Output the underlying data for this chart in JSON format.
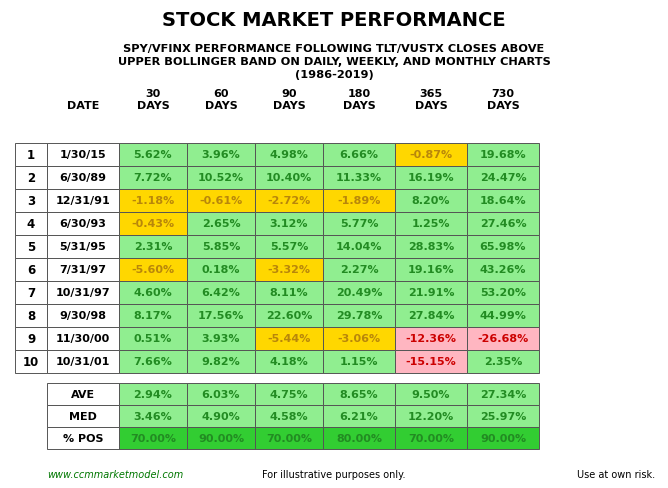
{
  "title": "STOCK MARKET PERFORMANCE",
  "subtitle_lines": [
    "SPY/VFINX PERFORMANCE FOLLOWING TLT/VUSTX CLOSES ABOVE",
    "UPPER BOLLINGER BAND ON DAILY, WEEKLY, AND MONTHLY CHARTS",
    "(1986-2019)"
  ],
  "col_headers_top": [
    "30",
    "60",
    "90",
    "180",
    "365",
    "730"
  ],
  "col_headers_bot": [
    "DAYS",
    "DAYS",
    "DAYS",
    "DAYS",
    "DAYS",
    "DAYS"
  ],
  "rows": [
    [
      1,
      "1/30/15",
      5.62,
      3.96,
      4.98,
      6.66,
      -0.87,
      19.68
    ],
    [
      2,
      "6/30/89",
      7.72,
      10.52,
      10.4,
      11.33,
      16.19,
      24.47
    ],
    [
      3,
      "12/31/91",
      -1.18,
      -0.61,
      -2.72,
      -1.89,
      8.2,
      18.64
    ],
    [
      4,
      "6/30/93",
      -0.43,
      2.65,
      3.12,
      5.77,
      1.25,
      27.46
    ],
    [
      5,
      "5/31/95",
      2.31,
      5.85,
      5.57,
      14.04,
      28.83,
      65.98
    ],
    [
      6,
      "7/31/97",
      -5.6,
      0.18,
      -3.32,
      2.27,
      19.16,
      43.26
    ],
    [
      7,
      "10/31/97",
      4.6,
      6.42,
      8.11,
      20.49,
      21.91,
      53.2
    ],
    [
      8,
      "9/30/98",
      8.17,
      17.56,
      22.6,
      29.78,
      27.84,
      44.99
    ],
    [
      9,
      "11/30/00",
      0.51,
      3.93,
      -5.44,
      -3.06,
      -12.36,
      -26.68
    ],
    [
      10,
      "10/31/01",
      7.66,
      9.82,
      4.18,
      1.15,
      -15.15,
      2.35
    ]
  ],
  "cell_colors": [
    [
      "green",
      "green",
      "green",
      "green",
      "yellow",
      "green"
    ],
    [
      "green",
      "green",
      "green",
      "green",
      "green",
      "green"
    ],
    [
      "yellow",
      "yellow",
      "yellow",
      "yellow",
      "green",
      "green"
    ],
    [
      "yellow",
      "green",
      "green",
      "green",
      "green",
      "green"
    ],
    [
      "green",
      "green",
      "green",
      "green",
      "green",
      "green"
    ],
    [
      "yellow",
      "green",
      "yellow",
      "green",
      "green",
      "green"
    ],
    [
      "green",
      "green",
      "green",
      "green",
      "green",
      "green"
    ],
    [
      "green",
      "green",
      "green",
      "green",
      "green",
      "green"
    ],
    [
      "green",
      "green",
      "yellow",
      "yellow",
      "red",
      "red"
    ],
    [
      "green",
      "green",
      "green",
      "green",
      "red",
      "green"
    ]
  ],
  "summary": [
    [
      "AVE",
      2.94,
      6.03,
      4.75,
      8.65,
      9.5,
      27.34
    ],
    [
      "MED",
      3.46,
      4.9,
      4.58,
      6.21,
      12.2,
      25.97
    ],
    [
      "% POS",
      70.0,
      90.0,
      70.0,
      80.0,
      70.0,
      90.0
    ]
  ],
  "footer": [
    "www.ccmmarketmodel.com",
    "For illustrative purposes only.",
    "Use at own risk."
  ],
  "color_green_light": "#90EE90",
  "color_green_dark": "#32CD32",
  "color_yellow": "#FFD700",
  "color_red_light": "#FFB6C1",
  "color_white": "#FFFFFF",
  "text_green_dark": "#228B22",
  "text_yellow_dark": "#B8860B",
  "text_red": "#CC0000",
  "text_black": "#000000",
  "border_color": "#555555"
}
